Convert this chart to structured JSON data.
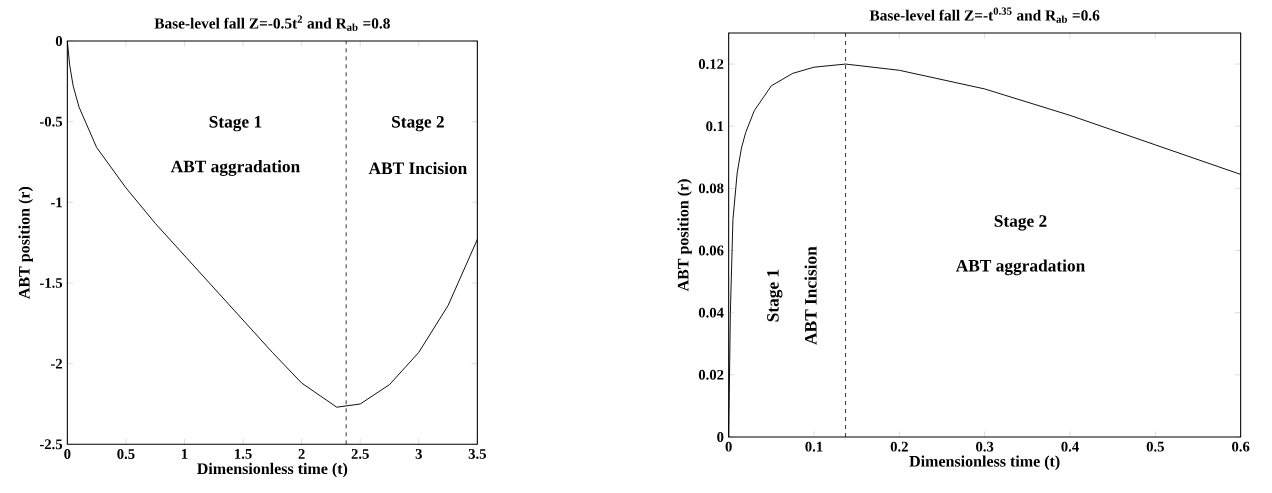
{
  "chart_data": [
    {
      "type": "line",
      "title": "Base-level fall Z=-0.5t$^{2}$  and R$_{ab}$ =0.8",
      "xlabel": "Dimensionless time (t)",
      "ylabel": "ABT position (r)",
      "series": [
        {
          "color": "#000000",
          "x": [
            0,
            0.02,
            0.05,
            0.1,
            0.25,
            0.5,
            0.75,
            1,
            1.5,
            1.75,
            2,
            2.3,
            2.5,
            2.75,
            3,
            3.25,
            3.5
          ],
          "values": [
            0,
            -0.15,
            -0.28,
            -0.41,
            -0.66,
            -0.91,
            -1.13,
            -1.33,
            -1.73,
            -1.93,
            -2.12,
            -2.27,
            -2.25,
            -2.13,
            -1.93,
            -1.64,
            -1.23
          ]
        }
      ],
      "xlim": [
        0,
        3.5
      ],
      "ylim": [
        -2.5,
        0
      ],
      "xticks": [
        0,
        0.5,
        1,
        1.5,
        2,
        2.5,
        3,
        3.5
      ],
      "yticks": [
        -2.5,
        -2,
        -1.5,
        -1,
        -0.5,
        0
      ],
      "ref_lines": [
        {
          "axis": "x",
          "value": 2.38,
          "line_style": "dashed"
        }
      ],
      "annotations": [
        "Stage 1",
        "ABT aggradation",
        "Stage 2",
        "ABT Incision"
      ],
      "marker": "none",
      "line_style": "solid"
    },
    {
      "type": "line",
      "title": "Base-level fall Z=-t$^{0.35}$  and R$_{ab}$ =0.6",
      "xlabel": "Dimensionless time (t)",
      "ylabel": "ABT position (r)",
      "series": [
        {
          "color": "#000000",
          "x": [
            0,
            0.002,
            0.005,
            0.01,
            0.015,
            0.02,
            0.03,
            0.05,
            0.075,
            0.1,
            0.137,
            0.2,
            0.3,
            0.4,
            0.5,
            0.6
          ],
          "values": [
            0,
            0.04,
            0.07,
            0.085,
            0.093,
            0.098,
            0.105,
            0.113,
            0.117,
            0.119,
            0.12,
            0.118,
            0.112,
            0.1035,
            0.094,
            0.0845
          ]
        }
      ],
      "xlim": [
        0,
        0.6
      ],
      "ylim": [
        0,
        0.13
      ],
      "xticks": [
        0,
        0.1,
        0.2,
        0.3,
        0.4,
        0.5,
        0.6
      ],
      "yticks": [
        0,
        0.02,
        0.04,
        0.06,
        0.08,
        0.1,
        0.12
      ],
      "ref_lines": [
        {
          "axis": "x",
          "value": 0.137,
          "line_style": "dashed"
        }
      ],
      "annotations": [
        "Stage 1",
        "ABT Incision",
        "Stage 2",
        "ABT aggradation"
      ],
      "marker": "none",
      "line_style": "solid"
    }
  ]
}
